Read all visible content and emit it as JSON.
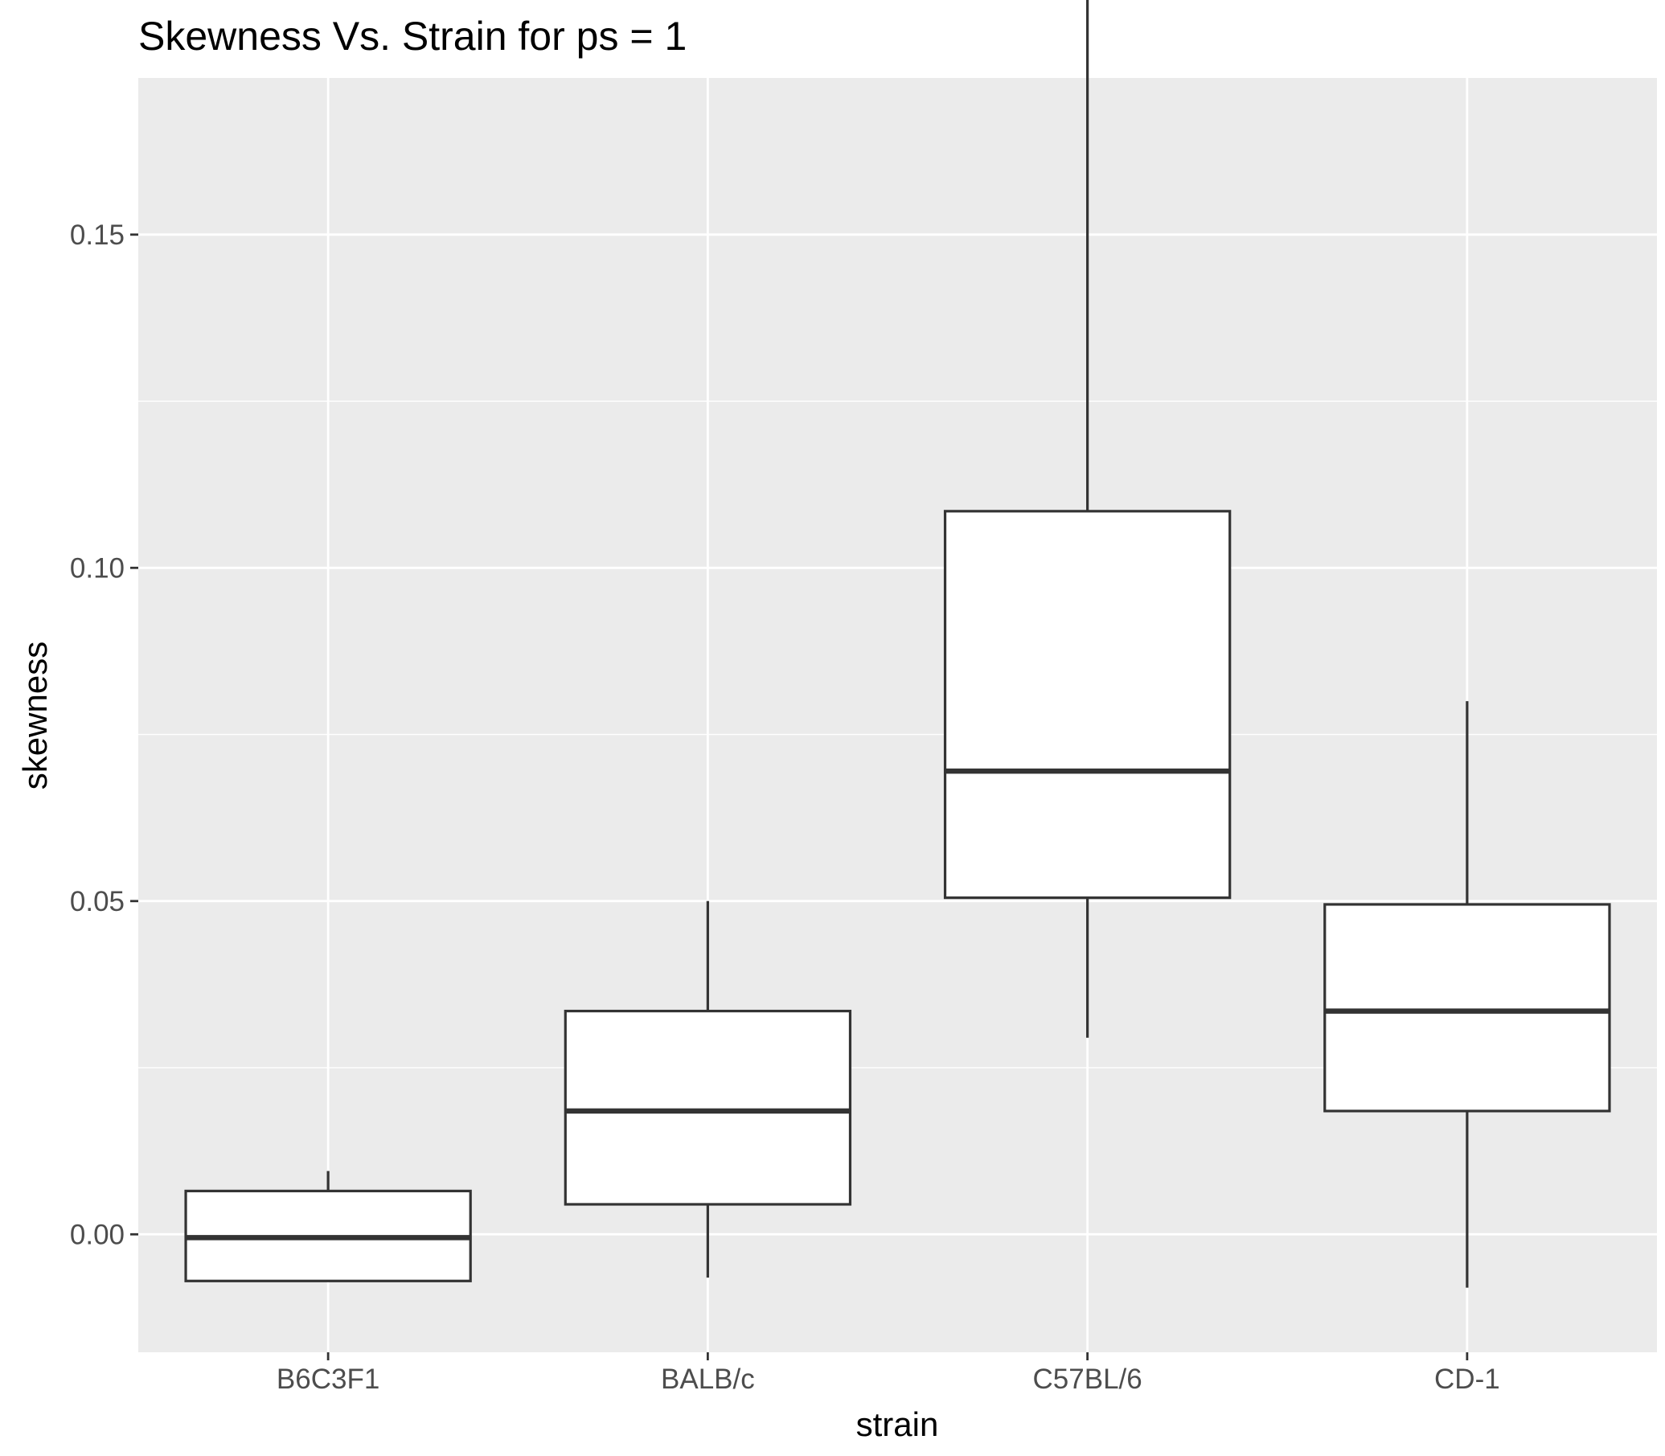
{
  "chart_data": {
    "type": "boxplot",
    "title": "Skewness Vs. Strain for ps = 1",
    "xlabel": "strain",
    "ylabel": "skewness",
    "categories": [
      "B6C3F1",
      "BALB/c",
      "C57BL/6",
      "CD-1"
    ],
    "yticks": [
      0.0,
      0.05,
      0.1,
      0.15
    ],
    "ytick_labels": [
      "0.00",
      "0.05",
      "0.10",
      "0.15"
    ],
    "ylim": [
      -0.0177,
      0.1735
    ],
    "grid": true,
    "legend": "none",
    "boxes": [
      {
        "category": "B6C3F1",
        "whisker_low": -0.007,
        "q1": -0.007,
        "median": -0.0005,
        "q3": 0.0065,
        "whisker_high": 0.0095
      },
      {
        "category": "BALB/c",
        "whisker_low": -0.0065,
        "q1": 0.0045,
        "median": 0.0185,
        "q3": 0.0335,
        "whisker_high": 0.05
      },
      {
        "category": "C57BL/6",
        "whisker_low": 0.0295,
        "q1": 0.0505,
        "median": 0.0695,
        "q3": 0.1085,
        "whisker_high": 0.189
      },
      {
        "category": "CD-1",
        "whisker_low": -0.008,
        "q1": 0.0185,
        "median": 0.0335,
        "q3": 0.0495,
        "whisker_high": 0.08
      }
    ],
    "colors": {
      "panel_background": "#ebebeb",
      "grid_line": "#ffffff",
      "box_fill": "#ffffff",
      "box_stroke": "#333333",
      "tick_mark": "#333333",
      "tick_text": "#4d4d4d"
    }
  }
}
